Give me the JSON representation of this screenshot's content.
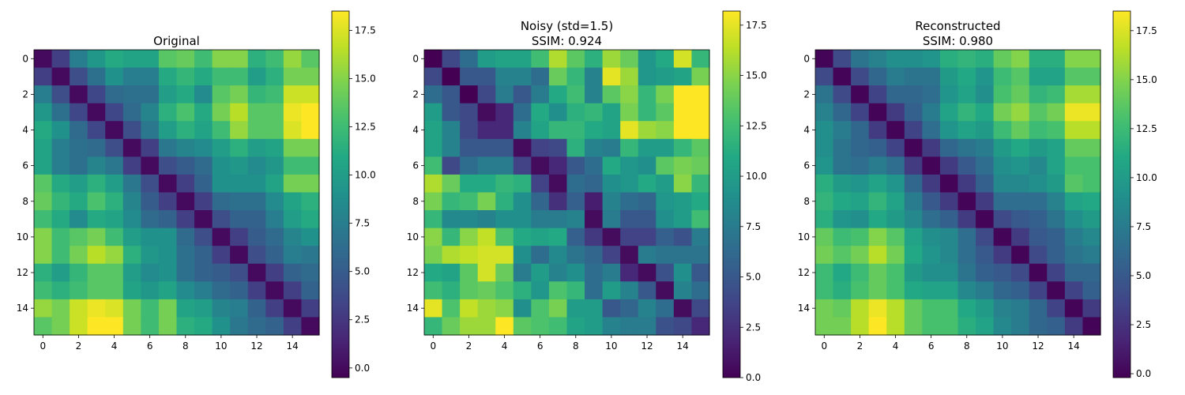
{
  "figure": {
    "background": "#ffffff",
    "colormap": "viridis"
  },
  "chart_data": [
    {
      "type": "heatmap",
      "title": [
        "Original"
      ],
      "x_ticks": [
        0,
        2,
        4,
        6,
        8,
        10,
        12,
        14
      ],
      "y_ticks": [
        0,
        2,
        4,
        6,
        8,
        10,
        12,
        14
      ],
      "vmin": -0.5,
      "vmax": 18.5,
      "colorbar_ticks": [
        "0.0",
        "2.5",
        "5.0",
        "7.5",
        "10.0",
        "12.5",
        "15.0",
        "17.5"
      ],
      "matrix": [
        [
          0.0,
          3.0,
          7.5,
          9.5,
          11.0,
          10.5,
          10.5,
          13.5,
          14.0,
          12.5,
          15.0,
          15.0,
          11.5,
          12.5,
          15.5,
          13.5
        ],
        [
          3.0,
          0.0,
          4.0,
          6.5,
          9.0,
          7.5,
          7.5,
          11.0,
          12.0,
          11.0,
          12.5,
          12.5,
          10.0,
          11.5,
          14.5,
          14.5
        ],
        [
          7.5,
          4.0,
          0.0,
          3.5,
          6.0,
          6.5,
          6.5,
          10.0,
          11.0,
          8.5,
          13.5,
          14.5,
          12.0,
          12.5,
          17.0,
          17.0
        ],
        [
          9.5,
          6.5,
          3.5,
          0.0,
          3.5,
          6.0,
          8.0,
          11.5,
          13.0,
          11.0,
          14.5,
          16.5,
          13.5,
          13.5,
          18.0,
          18.5
        ],
        [
          11.0,
          9.0,
          6.0,
          3.5,
          0.0,
          4.0,
          7.0,
          10.0,
          11.5,
          10.5,
          12.5,
          15.5,
          13.5,
          13.5,
          17.5,
          18.5
        ],
        [
          10.5,
          7.5,
          6.5,
          6.0,
          4.0,
          0.0,
          3.0,
          7.0,
          8.0,
          8.5,
          10.0,
          11.5,
          10.0,
          10.5,
          14.5,
          14.5
        ],
        [
          10.5,
          7.5,
          6.5,
          8.0,
          7.0,
          3.0,
          0.0,
          4.0,
          5.0,
          6.0,
          9.0,
          9.5,
          8.5,
          9.5,
          12.5,
          12.5
        ],
        [
          13.5,
          11.0,
          10.0,
          11.5,
          10.0,
          7.0,
          4.0,
          0.0,
          3.0,
          5.5,
          9.0,
          9.0,
          9.0,
          10.5,
          14.5,
          14.5
        ],
        [
          14.0,
          12.0,
          11.0,
          13.0,
          11.5,
          8.0,
          5.0,
          3.0,
          0.0,
          3.0,
          6.0,
          6.5,
          6.5,
          8.5,
          10.5,
          11.5
        ],
        [
          12.5,
          11.0,
          8.5,
          11.0,
          10.5,
          8.5,
          6.0,
          5.5,
          3.0,
          0.0,
          4.0,
          5.5,
          5.5,
          7.5,
          10.0,
          11.0
        ],
        [
          15.0,
          12.5,
          13.5,
          14.5,
          12.5,
          10.0,
          9.0,
          9.0,
          6.0,
          4.0,
          0.0,
          3.0,
          5.0,
          6.0,
          8.0,
          9.0
        ],
        [
          15.0,
          12.5,
          14.5,
          16.5,
          15.5,
          11.5,
          9.5,
          9.0,
          6.5,
          5.5,
          3.0,
          0.0,
          4.0,
          5.5,
          7.5,
          7.0
        ],
        [
          11.5,
          10.0,
          12.0,
          13.5,
          13.5,
          10.0,
          8.5,
          9.0,
          6.5,
          5.5,
          5.0,
          4.0,
          0.0,
          3.0,
          5.5,
          6.0
        ],
        [
          12.5,
          11.5,
          12.5,
          13.5,
          13.5,
          10.5,
          9.5,
          10.5,
          8.5,
          7.5,
          6.0,
          5.5,
          3.0,
          0.0,
          3.0,
          5.5
        ],
        [
          15.5,
          14.5,
          17.0,
          18.0,
          17.5,
          14.5,
          12.5,
          14.5,
          10.5,
          10.0,
          8.0,
          7.5,
          5.5,
          3.0,
          0.0,
          3.0
        ],
        [
          13.5,
          14.5,
          17.0,
          18.5,
          18.5,
          14.5,
          12.5,
          14.5,
          11.5,
          11.0,
          9.0,
          7.0,
          6.0,
          5.5,
          3.0,
          0.0
        ]
      ]
    },
    {
      "type": "heatmap",
      "title": [
        "Noisy (std=1.5)",
        "SSIM: 0.924"
      ],
      "x_ticks": [
        0,
        2,
        4,
        6,
        8,
        10,
        12,
        14
      ],
      "y_ticks": [
        0,
        2,
        4,
        6,
        8,
        10,
        12,
        14
      ],
      "vmin": 0.0,
      "vmax": 18.2,
      "colorbar_ticks": [
        "0.0",
        "2.5",
        "5.0",
        "7.5",
        "10.0",
        "12.5",
        "15.0",
        "17.5"
      ],
      "matrix": [
        [
          0.0,
          4.0,
          6.5,
          10.0,
          10.5,
          10.5,
          12.5,
          16.0,
          13.5,
          11.5,
          15.5,
          14.0,
          9.5,
          11.0,
          17.0,
          12.0
        ],
        [
          4.0,
          0.0,
          5.0,
          5.0,
          8.0,
          8.0,
          6.5,
          14.0,
          12.0,
          8.0,
          17.5,
          15.5,
          9.5,
          10.0,
          10.5,
          14.5
        ],
        [
          6.5,
          5.0,
          0.0,
          4.0,
          7.5,
          5.0,
          7.5,
          11.0,
          12.5,
          8.0,
          13.5,
          15.0,
          12.0,
          14.5,
          18.2,
          18.2
        ],
        [
          10.0,
          5.0,
          4.0,
          0.5,
          2.0,
          6.5,
          11.0,
          9.0,
          11.5,
          12.0,
          10.5,
          14.5,
          12.0,
          13.5,
          18.2,
          18.2
        ],
        [
          10.5,
          8.0,
          4.0,
          2.0,
          2.0,
          8.0,
          10.5,
          12.0,
          12.0,
          11.0,
          10.5,
          17.5,
          15.5,
          15.0,
          18.2,
          18.2
        ],
        [
          10.5,
          8.0,
          5.0,
          5.0,
          5.0,
          0.5,
          3.5,
          4.0,
          11.5,
          8.0,
          7.5,
          12.0,
          10.0,
          10.0,
          12.0,
          13.5
        ],
        [
          12.5,
          4.0,
          6.5,
          7.5,
          7.5,
          3.5,
          0.5,
          2.0,
          5.0,
          6.5,
          11.0,
          9.5,
          9.0,
          13.5,
          14.5,
          14.0
        ],
        [
          16.0,
          14.0,
          11.0,
          11.0,
          12.0,
          11.5,
          3.5,
          0.5,
          6.5,
          6.0,
          9.0,
          9.5,
          11.0,
          10.0,
          15.0,
          12.0
        ],
        [
          14.5,
          12.0,
          12.5,
          14.5,
          11.5,
          9.0,
          6.0,
          2.5,
          5.5,
          1.5,
          8.0,
          6.5,
          6.0,
          9.5,
          10.0,
          11.0
        ],
        [
          12.0,
          8.5,
          8.5,
          8.0,
          9.0,
          9.0,
          7.5,
          7.5,
          8.0,
          0.5,
          7.5,
          5.0,
          5.0,
          9.0,
          10.0,
          12.5
        ],
        [
          15.0,
          12.0,
          15.0,
          16.5,
          13.0,
          11.0,
          10.5,
          11.0,
          5.5,
          3.0,
          0.5,
          3.5,
          3.5,
          5.5,
          4.5,
          7.5
        ],
        [
          14.5,
          16.0,
          16.5,
          17.0,
          17.0,
          9.0,
          6.5,
          8.5,
          7.0,
          6.0,
          3.5,
          0.5,
          7.5,
          7.0,
          7.0,
          7.0
        ],
        [
          11.0,
          10.5,
          13.5,
          17.0,
          14.0,
          7.5,
          10.0,
          8.0,
          9.0,
          6.5,
          7.5,
          2.0,
          0.5,
          4.5,
          9.0,
          5.0
        ],
        [
          12.5,
          11.5,
          13.5,
          14.0,
          13.0,
          11.5,
          9.5,
          13.0,
          12.0,
          6.5,
          10.0,
          8.0,
          5.0,
          0.5,
          8.0,
          6.5
        ],
        [
          17.5,
          13.0,
          16.5,
          15.5,
          15.0,
          9.0,
          13.0,
          14.5,
          10.0,
          10.0,
          5.0,
          6.0,
          8.0,
          6.5,
          0.5,
          4.0
        ],
        [
          12.0,
          14.0,
          15.5,
          15.5,
          18.2,
          13.5,
          13.0,
          12.5,
          10.5,
          10.0,
          8.0,
          7.5,
          7.5,
          4.5,
          4.0,
          2.0
        ]
      ]
    },
    {
      "type": "heatmap",
      "title": [
        "Reconstructed",
        "SSIM: 0.980"
      ],
      "x_ticks": [
        0,
        2,
        4,
        6,
        8,
        10,
        12,
        14
      ],
      "y_ticks": [
        0,
        2,
        4,
        6,
        8,
        10,
        12,
        14
      ],
      "vmin": -0.2,
      "vmax": 18.5,
      "colorbar_ticks": [
        "0.0",
        "2.5",
        "5.0",
        "7.5",
        "10.0",
        "12.5",
        "15.0",
        "17.5"
      ],
      "matrix": [
        [
          0.0,
          4.0,
          7.0,
          8.0,
          9.0,
          9.0,
          9.5,
          11.5,
          12.0,
          11.5,
          14.0,
          15.0,
          11.5,
          11.5,
          15.0,
          15.0
        ],
        [
          4.0,
          0.0,
          4.0,
          6.0,
          7.5,
          7.0,
          7.0,
          10.0,
          11.0,
          9.5,
          12.5,
          13.5,
          10.5,
          10.5,
          13.5,
          13.5
        ],
        [
          7.0,
          4.0,
          0.0,
          3.5,
          6.0,
          6.0,
          6.5,
          9.5,
          10.5,
          9.0,
          13.0,
          14.0,
          12.0,
          12.5,
          16.0,
          16.0
        ],
        [
          8.0,
          6.0,
          3.5,
          0.0,
          3.0,
          5.5,
          7.5,
          10.5,
          12.0,
          11.0,
          14.5,
          15.5,
          13.5,
          14.5,
          18.0,
          18.0
        ],
        [
          9.0,
          7.5,
          6.0,
          3.0,
          0.0,
          3.5,
          6.5,
          9.5,
          10.5,
          10.0,
          12.5,
          14.0,
          12.5,
          13.0,
          16.5,
          16.5
        ],
        [
          9.0,
          7.0,
          6.0,
          5.5,
          3.5,
          0.0,
          3.0,
          6.0,
          7.0,
          7.5,
          10.0,
          11.0,
          10.0,
          10.5,
          14.0,
          14.0
        ],
        [
          9.5,
          7.0,
          6.5,
          7.5,
          6.5,
          3.0,
          0.0,
          3.0,
          5.0,
          6.5,
          9.0,
          9.5,
          8.5,
          10.5,
          13.0,
          13.0
        ],
        [
          11.5,
          10.0,
          9.5,
          10.5,
          9.5,
          6.0,
          3.0,
          0.0,
          3.0,
          5.5,
          8.5,
          8.5,
          9.0,
          10.0,
          13.5,
          13.0
        ],
        [
          12.0,
          11.0,
          10.5,
          12.0,
          10.5,
          7.5,
          5.0,
          3.0,
          0.0,
          3.0,
          6.5,
          6.5,
          6.5,
          8.0,
          10.5,
          11.0
        ],
        [
          11.5,
          9.5,
          9.0,
          11.0,
          10.0,
          8.5,
          6.5,
          5.5,
          3.0,
          0.0,
          4.0,
          5.0,
          5.5,
          7.0,
          9.0,
          10.0
        ],
        [
          14.0,
          12.5,
          13.0,
          15.0,
          13.5,
          10.5,
          9.0,
          8.5,
          6.5,
          4.0,
          0.0,
          3.0,
          5.0,
          5.5,
          7.5,
          8.5
        ],
        [
          14.5,
          13.5,
          14.5,
          16.5,
          14.5,
          11.0,
          9.5,
          8.5,
          6.5,
          5.0,
          3.0,
          0.0,
          4.0,
          5.5,
          7.0,
          7.5
        ],
        [
          12.5,
          11.0,
          12.5,
          14.0,
          13.0,
          10.0,
          9.0,
          9.0,
          7.0,
          5.5,
          5.0,
          4.0,
          0.0,
          3.5,
          6.0,
          6.0
        ],
        [
          12.5,
          11.5,
          13.0,
          14.0,
          13.0,
          11.0,
          10.5,
          10.5,
          8.5,
          7.5,
          6.0,
          5.5,
          3.5,
          0.0,
          3.5,
          5.5
        ],
        [
          14.5,
          14.0,
          16.5,
          18.0,
          16.5,
          14.0,
          13.0,
          13.0,
          11.0,
          10.0,
          8.0,
          7.5,
          6.0,
          3.5,
          0.0,
          3.0
        ],
        [
          14.5,
          14.5,
          16.5,
          18.5,
          16.5,
          14.0,
          13.0,
          13.0,
          11.5,
          10.5,
          8.5,
          7.5,
          6.0,
          5.5,
          3.0,
          0.0
        ]
      ]
    }
  ]
}
